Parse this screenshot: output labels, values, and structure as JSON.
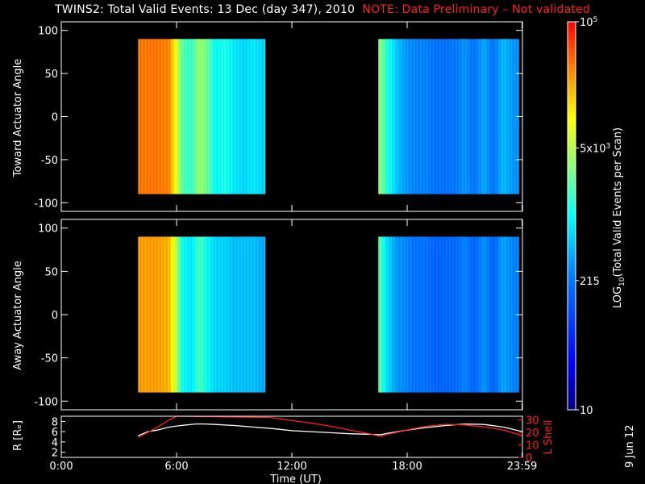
{
  "title": {
    "main": "TWINS2: Total Valid Events: 13 Dec (day 347), 2010",
    "note": "NOTE: Data Preliminary – Not validated"
  },
  "colors": {
    "note": "#ff2020",
    "background": "#000000",
    "frame": "#ffffff",
    "l_shell": "#ff2020",
    "radius": "#ffffff"
  },
  "chart_data": [
    {
      "type": "heatmap",
      "name": "toward",
      "ylabel": "Toward Actuator Angle",
      "ylim": [
        -110,
        110
      ],
      "yticks": [
        100,
        50,
        0,
        -50,
        -100
      ],
      "xlim": [
        0,
        24
      ],
      "angle_range": [
        -90,
        90
      ],
      "data_intervals_hours": [
        [
          4,
          10.6
        ],
        [
          16.5,
          23.8
        ]
      ],
      "levels_by_hour": {
        "x": [
          4.0,
          5.0,
          5.6,
          6.0,
          6.3,
          6.8,
          7.2,
          7.6,
          8.0,
          8.5,
          9.0,
          9.5,
          10.0,
          10.5,
          16.5,
          17.0,
          17.5,
          18.0,
          18.5,
          19.0,
          19.5,
          20.0,
          20.5,
          21.0,
          21.5,
          22.0,
          22.5,
          23.0,
          23.5
        ],
        "log10_events": [
          4.55,
          4.55,
          4.5,
          3.9,
          3.3,
          3.2,
          3.6,
          3.4,
          3.0,
          3.1,
          2.9,
          2.8,
          2.9,
          2.8,
          3.6,
          3.1,
          2.7,
          2.5,
          2.4,
          2.4,
          2.3,
          2.3,
          2.35,
          2.5,
          2.3,
          2.6,
          2.3,
          2.7,
          2.5
        ]
      }
    },
    {
      "type": "heatmap",
      "name": "away",
      "ylabel": "Away Actuator Angle",
      "ylim": [
        -110,
        110
      ],
      "yticks": [
        100,
        50,
        0,
        -50,
        -100
      ],
      "xlim": [
        0,
        24
      ],
      "angle_range": [
        -90,
        90
      ],
      "data_intervals_hours": [
        [
          4,
          10.6
        ],
        [
          16.5,
          23.8
        ]
      ],
      "levels_by_hour": {
        "x": [
          4.0,
          5.0,
          5.6,
          6.0,
          6.3,
          6.8,
          7.2,
          7.6,
          8.0,
          8.5,
          9.0,
          9.5,
          10.0,
          10.5,
          16.5,
          17.0,
          17.5,
          18.0,
          18.5,
          19.0,
          19.5,
          20.0,
          20.5,
          21.0,
          21.5,
          22.0,
          22.5,
          23.0,
          23.5
        ],
        "log10_events": [
          4.4,
          4.4,
          4.3,
          3.7,
          3.0,
          2.9,
          3.3,
          3.0,
          2.8,
          2.8,
          2.7,
          2.7,
          2.7,
          2.6,
          3.4,
          2.8,
          2.5,
          2.4,
          2.3,
          2.3,
          2.2,
          2.2,
          2.25,
          2.4,
          2.2,
          2.5,
          2.2,
          2.6,
          2.4
        ]
      }
    },
    {
      "type": "line",
      "name": "orbit",
      "ylabel": "R [Rₑ]",
      "ylabel_right": "L Shell",
      "xlabel": "Time (UT)",
      "xlim": [
        0,
        24
      ],
      "xticks": [
        "0:00",
        "6:00",
        "12:00",
        "18:00",
        "23:59"
      ],
      "xtick_hours": [
        0,
        6,
        12,
        18,
        23.98
      ],
      "ylim": [
        1,
        9
      ],
      "yticks": [
        2,
        4,
        6,
        8
      ],
      "ylim_right": [
        0,
        33
      ],
      "yticks_right": [
        0,
        10,
        20,
        30
      ],
      "series": [
        {
          "axis": "left",
          "x": [
            4.0,
            4.5,
            5.0,
            5.5,
            6.0,
            6.5,
            7.0,
            7.5,
            8.0,
            9.0,
            10.0,
            11.0,
            12.0,
            13.0,
            14.0,
            15.0,
            16.0,
            16.6,
            17.0,
            18.0,
            19.0,
            20.0,
            21.0,
            22.0,
            23.0,
            24.0
          ],
          "y": [
            5.2,
            6.0,
            6.3,
            6.8,
            7.1,
            7.3,
            7.5,
            7.5,
            7.4,
            7.2,
            6.9,
            6.6,
            6.2,
            6.0,
            5.8,
            5.6,
            5.5,
            5.4,
            5.7,
            6.3,
            6.8,
            7.2,
            7.5,
            7.4,
            6.9,
            6.0
          ]
        },
        {
          "axis": "right",
          "x": [
            4.0,
            4.5,
            5.0,
            5.5,
            6.0,
            10.9,
            12.0,
            13.0,
            14.0,
            15.0,
            16.0,
            16.6,
            17.0,
            18.0,
            19.0,
            20.0,
            21.0,
            22.0,
            23.0,
            24.0
          ],
          "y": [
            16.0,
            20.0,
            24.0,
            29.0,
            33.0,
            32.0,
            29.5,
            27.5,
            25.0,
            22.0,
            19.0,
            17.0,
            18.5,
            22.0,
            25.0,
            26.5,
            26.0,
            24.5,
            22.0,
            17.5
          ]
        }
      ]
    }
  ],
  "colorbar": {
    "label": "LOG",
    "label_sub": "10",
    "label_rest": "(Total Valid Events per Scan)",
    "ticks": [
      {
        "base": "10",
        "exp": "5",
        "log": 5.0
      },
      {
        "base": "5x10",
        "exp": "3",
        "log": 3.699
      },
      {
        "base": "215",
        "exp": "",
        "log": 2.332
      },
      {
        "base": "10",
        "exp": "",
        "log": 1.0
      }
    ],
    "range": [
      1.0,
      5.0
    ]
  },
  "footer_date": "9 Jun 12"
}
